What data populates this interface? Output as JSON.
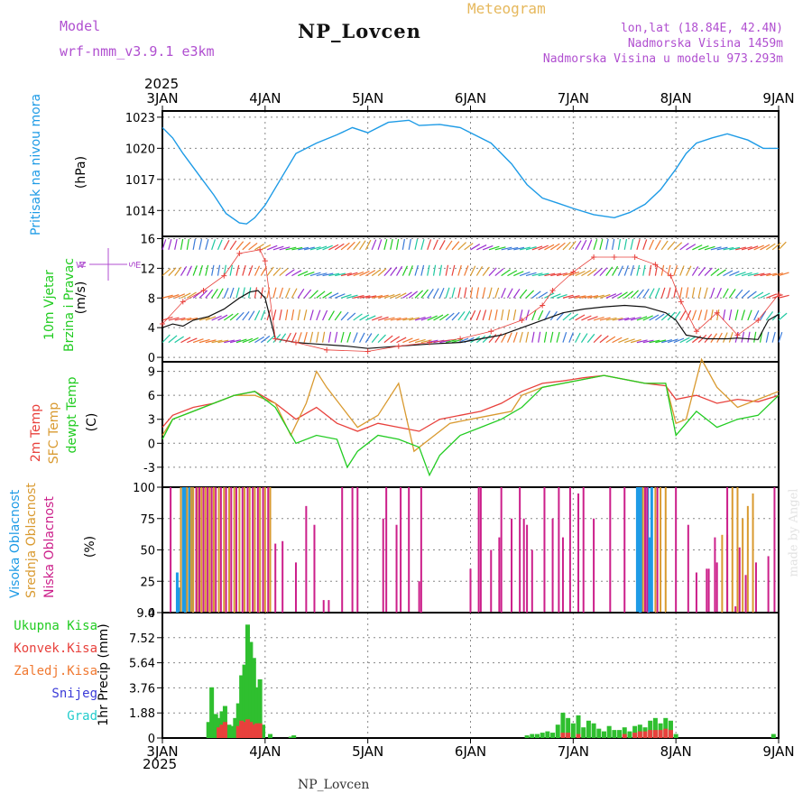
{
  "header": {
    "model_label": "Model",
    "model_name": "wrf-nmm_v3.9.1 e3km",
    "site_title": "NP_Lovcen",
    "meteogram": "Meteogram",
    "lonlat": "lon,lat (18.84E, 42.4N)",
    "altitude": "Nadmorska Visina 1459m",
    "model_altitude": "Nadmorska Visina u modelu 973.293m",
    "year_top": "2025",
    "year_bottom": "2025",
    "footer": "NP_Lovcen",
    "watermark": "made by Angel"
  },
  "colors": {
    "pressure": "#1e9be6",
    "wind_speed": "#111111",
    "gust": "#e8413c",
    "temp2m": "#e8413c",
    "sfc_temp": "#d99a30",
    "dewpoint": "#22cc22",
    "high_cloud": "#1e9be6",
    "mid_cloud": "#d99a30",
    "low_cloud": "#cc1f8a",
    "total_precip": "#2fbf2f",
    "conv_precip": "#e8413c",
    "snow": "#3a3ad8",
    "model_text": "#b04fd0",
    "meteogram_text": "#e6b85c"
  },
  "chart_data": [
    {
      "type": "line",
      "panel": "pressure",
      "title": "Pritisak na nivou mora",
      "ylabel": "(hPa)",
      "yticks": [
        "1014",
        "1017",
        "1020",
        "1023"
      ],
      "ylim": [
        1011.5,
        1023.6
      ],
      "x_unit": "days since 3JAN 00UTC",
      "series": [
        {
          "name": "Pritisak na nivou mora",
          "x": [
            0,
            0.1,
            0.2,
            0.35,
            0.5,
            0.62,
            0.75,
            0.82,
            0.9,
            1.0,
            1.15,
            1.3,
            1.5,
            1.7,
            1.85,
            2.0,
            2.2,
            2.4,
            2.5,
            2.7,
            2.9,
            3.0,
            3.2,
            3.4,
            3.55,
            3.7,
            3.85,
            4.0,
            4.2,
            4.4,
            4.55,
            4.7,
            4.85,
            5.0,
            5.1,
            5.2,
            5.35,
            5.5,
            5.7,
            5.85,
            6.0
          ],
          "values": [
            1022.0,
            1021.0,
            1019.5,
            1017.5,
            1015.5,
            1013.7,
            1012.8,
            1012.7,
            1013.3,
            1014.5,
            1017.0,
            1019.5,
            1020.5,
            1021.3,
            1022.0,
            1021.5,
            1022.5,
            1022.7,
            1022.2,
            1022.3,
            1022.0,
            1021.5,
            1020.5,
            1018.5,
            1016.5,
            1015.2,
            1014.7,
            1014.2,
            1013.6,
            1013.3,
            1013.8,
            1014.6,
            1016.0,
            1018.0,
            1019.5,
            1020.5,
            1021.0,
            1021.4,
            1020.8,
            1020.0,
            1020.0
          ]
        }
      ]
    },
    {
      "type": "line",
      "panel": "wind",
      "title": "10m Vjetar Brzina i Pravac",
      "ylabel": "(m/s)",
      "compass": [
        "N",
        "W",
        "E",
        "S"
      ],
      "yticks": [
        "0",
        "4",
        "8",
        "12",
        "16"
      ],
      "ylim": [
        -0.6,
        16.3
      ],
      "series": [
        {
          "name": "Brzina",
          "x": [
            0,
            0.1,
            0.2,
            0.3,
            0.45,
            0.6,
            0.75,
            0.85,
            0.93,
            1.0,
            1.1,
            1.3,
            1.5,
            1.8,
            2.0,
            2.3,
            2.6,
            2.9,
            3.1,
            3.3,
            3.5,
            3.7,
            3.9,
            4.1,
            4.3,
            4.5,
            4.7,
            4.9,
            5.0,
            5.1,
            5.3,
            5.5,
            5.6,
            5.8,
            5.9,
            6.0
          ],
          "values": [
            4.0,
            4.5,
            4.2,
            5.0,
            5.5,
            6.5,
            8.0,
            8.8,
            9.0,
            8.0,
            2.5,
            2.0,
            1.8,
            1.5,
            1.2,
            1.5,
            1.8,
            2.0,
            2.5,
            3.0,
            4.0,
            5.0,
            6.0,
            6.5,
            6.8,
            7.0,
            6.8,
            6.0,
            5.0,
            3.0,
            2.5,
            2.5,
            2.6,
            2.4,
            5.0,
            5.8
          ]
        },
        {
          "name": "Udar",
          "x": [
            0,
            0.2,
            0.4,
            0.6,
            0.75,
            0.95,
            1.0,
            1.1,
            1.3,
            1.6,
            2.0,
            2.3,
            2.6,
            2.9,
            3.2,
            3.5,
            3.7,
            3.8,
            4.0,
            4.2,
            4.4,
            4.6,
            4.8,
            4.95,
            5.05,
            5.2,
            5.4,
            5.6,
            5.8,
            6.0
          ],
          "values": [
            4.5,
            7.5,
            9.0,
            11.0,
            14.0,
            14.5,
            13.0,
            2.5,
            2.0,
            1.0,
            0.8,
            1.5,
            2.0,
            2.5,
            3.5,
            5.0,
            7.0,
            9.0,
            11.5,
            13.5,
            13.5,
            13.5,
            12.5,
            11.0,
            7.5,
            3.5,
            6.0,
            3.0,
            5.0,
            8.5
          ]
        }
      ]
    },
    {
      "type": "line",
      "panel": "temperature",
      "title": [
        "2m Temp",
        "SFC Temp",
        "dewpt Temp"
      ],
      "ylabel": "(C)",
      "yticks": [
        "-3",
        "0",
        "3",
        "6",
        "9"
      ],
      "ylim": [
        -5.5,
        10.2
      ],
      "series": [
        {
          "name": "2m Temp",
          "x": [
            0,
            0.1,
            0.3,
            0.5,
            0.7,
            0.9,
            1.1,
            1.3,
            1.5,
            1.7,
            1.9,
            2.1,
            2.3,
            2.5,
            2.7,
            2.9,
            3.1,
            3.3,
            3.5,
            3.7,
            3.9,
            4.1,
            4.3,
            4.5,
            4.7,
            4.9,
            5.0,
            5.2,
            5.4,
            5.6,
            5.8,
            6.0
          ],
          "values": [
            2.0,
            3.5,
            4.5,
            5.0,
            6.0,
            6.5,
            5.0,
            3.0,
            4.5,
            2.5,
            1.5,
            2.5,
            2.0,
            1.5,
            3.0,
            3.5,
            4.0,
            5.0,
            6.5,
            7.5,
            7.8,
            8.2,
            8.5,
            8.0,
            7.5,
            7.2,
            5.5,
            6.0,
            5.0,
            5.5,
            5.2,
            6.0
          ]
        },
        {
          "name": "SFC Temp",
          "x": [
            0,
            0.1,
            0.3,
            0.5,
            0.7,
            0.9,
            1.1,
            1.25,
            1.4,
            1.5,
            1.6,
            1.75,
            1.9,
            2.1,
            2.3,
            2.45,
            2.6,
            2.8,
            3.0,
            3.2,
            3.4,
            3.5,
            3.7,
            3.9,
            4.1,
            4.3,
            4.5,
            4.7,
            4.9,
            5.0,
            5.1,
            5.25,
            5.4,
            5.6,
            5.8,
            6.0
          ],
          "values": [
            1.0,
            3.0,
            4.0,
            5.0,
            6.0,
            6.0,
            5.0,
            1.0,
            5.0,
            9.0,
            7.0,
            4.5,
            2.0,
            3.5,
            7.5,
            -1.0,
            0.5,
            2.5,
            3.0,
            3.5,
            4.0,
            6.0,
            7.0,
            7.5,
            8.0,
            8.5,
            8.0,
            7.5,
            7.5,
            2.5,
            3.0,
            10.5,
            7.0,
            4.5,
            5.5,
            6.5
          ]
        },
        {
          "name": "dewpt Temp",
          "x": [
            0,
            0.1,
            0.3,
            0.5,
            0.7,
            0.9,
            1.1,
            1.3,
            1.5,
            1.7,
            1.8,
            1.9,
            2.1,
            2.3,
            2.5,
            2.6,
            2.7,
            2.9,
            3.1,
            3.3,
            3.5,
            3.7,
            3.9,
            4.1,
            4.3,
            4.5,
            4.7,
            4.9,
            5.0,
            5.2,
            5.4,
            5.6,
            5.8,
            6.0
          ],
          "values": [
            0.5,
            3.0,
            4.0,
            5.0,
            6.0,
            6.5,
            4.5,
            0.0,
            1.0,
            0.5,
            -3.0,
            -1.0,
            1.0,
            0.5,
            -0.5,
            -4.0,
            -1.5,
            1.0,
            2.0,
            3.0,
            4.5,
            7.0,
            7.5,
            8.0,
            8.5,
            8.0,
            7.5,
            7.5,
            1.0,
            4.0,
            2.0,
            3.0,
            3.5,
            6.0
          ]
        }
      ]
    },
    {
      "type": "bar",
      "panel": "clouds",
      "title": [
        "Visoka Oblacnost",
        "Srednja Oblacnost",
        "Niska Oblacnost"
      ],
      "ylabel": "(%)",
      "yticks": [
        "0",
        "25",
        "50",
        "75",
        "100"
      ],
      "ylim": [
        0,
        100
      ],
      "series": [
        {
          "name": "Visoka Oblacnost",
          "x": [
            0.14,
            0.16,
            0.2,
            0.22,
            0.26,
            0.29,
            4.62,
            4.64,
            4.66,
            4.72,
            4.74,
            4.76
          ],
          "values": [
            32,
            20,
            100,
            100,
            100,
            100,
            100,
            100,
            100,
            100,
            60,
            100
          ]
        },
        {
          "name": "Srednja Oblacnost",
          "x": [
            0.18,
            0.24,
            0.28,
            0.3,
            0.34,
            0.38,
            0.42,
            0.46,
            0.5,
            0.55,
            0.6,
            0.65,
            0.7,
            0.75,
            0.8,
            0.85,
            0.9,
            0.95,
            1.0,
            1.05,
            4.68,
            4.8,
            4.85,
            4.9,
            5.45,
            5.5,
            5.55,
            5.6,
            5.65,
            5.7,
            5.75
          ],
          "values": [
            100,
            100,
            100,
            100,
            100,
            100,
            100,
            100,
            100,
            100,
            100,
            100,
            100,
            100,
            100,
            100,
            100,
            100,
            100,
            100,
            100,
            100,
            100,
            100,
            62,
            62,
            100,
            100,
            75,
            85,
            95
          ]
        },
        {
          "name": "Niska Oblacnost",
          "x": [
            0.08,
            0.33,
            0.36,
            0.4,
            0.44,
            0.48,
            0.52,
            0.57,
            0.62,
            0.67,
            0.72,
            0.78,
            0.83,
            0.88,
            0.93,
            0.98,
            1.03,
            1.1,
            1.17,
            1.3,
            1.4,
            1.48,
            1.57,
            1.62,
            1.75,
            1.85,
            1.9,
            2.15,
            2.18,
            2.28,
            2.32,
            2.4,
            2.5,
            2.52,
            3.0,
            3.08,
            3.1,
            3.2,
            3.28,
            3.3,
            3.4,
            3.48,
            3.52,
            3.55,
            3.6,
            3.72,
            3.8,
            3.86,
            3.9,
            3.97,
            4.05,
            4.1,
            4.2,
            4.36,
            4.5,
            4.7,
            4.72,
            4.82,
            5.0,
            5.12,
            5.2,
            5.3,
            5.32,
            5.38,
            5.4,
            5.5,
            5.58,
            5.62,
            5.68,
            5.78,
            5.9,
            5.96
          ],
          "values": [
            100,
            100,
            100,
            100,
            100,
            100,
            100,
            100,
            100,
            100,
            100,
            100,
            100,
            100,
            100,
            100,
            100,
            55,
            57,
            40,
            85,
            70,
            10,
            10,
            100,
            100,
            100,
            75,
            100,
            70,
            100,
            100,
            25,
            100,
            35,
            100,
            100,
            50,
            60,
            100,
            75,
            100,
            75,
            70,
            50,
            100,
            75,
            100,
            60,
            100,
            95,
            100,
            75,
            100,
            100,
            100,
            100,
            100,
            100,
            70,
            32,
            35,
            35,
            60,
            40,
            100,
            5,
            52,
            30,
            40,
            45,
            100
          ]
        }
      ]
    },
    {
      "type": "bar",
      "panel": "precipitation",
      "title": [
        "Ukupna Kisa",
        "Konvek.Kisa",
        "Zaledj.Kisa",
        "Snijeg",
        "Grad"
      ],
      "ylabel": "1hr Precip (mm)",
      "yticks": [
        "0",
        "1.88",
        "3.76",
        "5.64",
        "7.52",
        "9.4"
      ],
      "ylim": [
        0,
        9.4
      ],
      "xticks": [
        "3JAN",
        "4JAN",
        "5JAN",
        "6JAN",
        "7JAN",
        "8JAN",
        "9JAN"
      ],
      "series": [
        {
          "name": "Ukupna Kisa",
          "x": [
            0.45,
            0.48,
            0.52,
            0.55,
            0.58,
            0.61,
            0.65,
            0.68,
            0.71,
            0.74,
            0.77,
            0.8,
            0.83,
            0.86,
            0.89,
            0.92,
            0.95,
            0.98,
            1.05,
            1.25,
            1.28,
            3.55,
            3.6,
            3.65,
            3.7,
            3.75,
            3.8,
            3.85,
            3.9,
            3.95,
            4.0,
            4.05,
            4.1,
            4.15,
            4.2,
            4.25,
            4.3,
            4.35,
            4.4,
            4.45,
            4.5,
            4.55,
            4.6,
            4.65,
            4.7,
            4.75,
            4.8,
            4.85,
            4.9,
            4.95,
            5.0,
            5.95
          ],
          "values": [
            1.2,
            3.8,
            1.8,
            1.5,
            2.0,
            2.4,
            1.0,
            0.9,
            1.5,
            2.6,
            4.7,
            5.5,
            8.5,
            7.2,
            6.0,
            3.8,
            4.4,
            1.0,
            0.3,
            0.1,
            0.2,
            0.2,
            0.3,
            0.3,
            0.4,
            0.5,
            0.4,
            1.0,
            1.9,
            1.5,
            1.1,
            1.7,
            0.8,
            1.3,
            1.1,
            0.7,
            0.5,
            0.9,
            0.6,
            0.6,
            0.8,
            0.5,
            0.9,
            1.0,
            0.8,
            1.3,
            1.5,
            1.1,
            1.5,
            1.3,
            0.3,
            0.3
          ]
        },
        {
          "name": "Konvek.Kisa",
          "x": [
            0.55,
            0.58,
            0.61,
            0.74,
            0.77,
            0.8,
            0.83,
            0.86,
            0.89,
            0.92,
            0.95,
            3.9,
            3.95,
            4.05,
            4.5,
            4.6,
            4.65,
            4.7,
            4.75,
            4.8,
            4.85,
            4.9,
            4.95
          ],
          "values": [
            0.8,
            1.0,
            1.2,
            0.9,
            1.3,
            1.2,
            1.4,
            1.2,
            1.0,
            1.1,
            1.1,
            0.4,
            0.4,
            0.3,
            0.3,
            0.4,
            0.5,
            0.5,
            0.6,
            0.6,
            0.6,
            0.7,
            0.6
          ]
        }
      ]
    }
  ]
}
